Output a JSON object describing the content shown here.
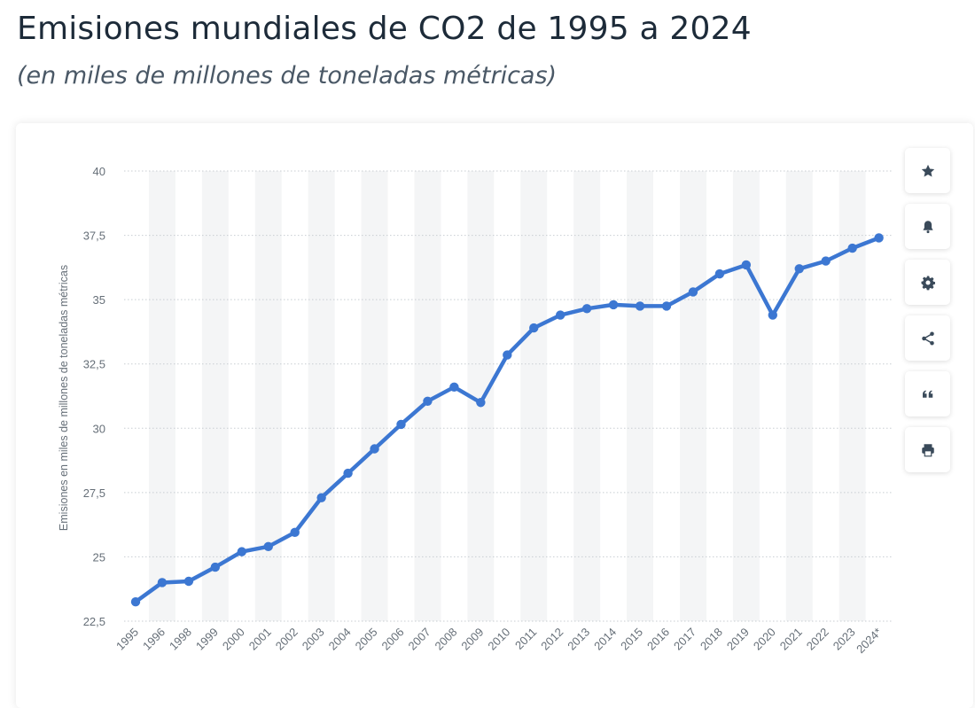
{
  "header": {
    "title": "Emisiones mundiales de CO2 de 1995 a 2024",
    "subtitle": "(en miles de millones de toneladas métricas)"
  },
  "toolbar": {
    "buttons": [
      {
        "name": "favorite-button",
        "icon": "star-icon"
      },
      {
        "name": "notification-button",
        "icon": "bell-icon"
      },
      {
        "name": "settings-button",
        "icon": "gear-icon"
      },
      {
        "name": "share-button",
        "icon": "share-icon"
      },
      {
        "name": "cite-button",
        "icon": "quote-icon"
      },
      {
        "name": "print-button",
        "icon": "printer-icon"
      }
    ]
  },
  "chart_data": {
    "type": "line",
    "title": "Emisiones mundiales de CO2 de 1995 a 2024",
    "subtitle": "(en miles de millones de toneladas métricas)",
    "ylabel": "Emisiones en miles de millones de toneladas métricas",
    "xlabel": "",
    "ylim": [
      22.5,
      40
    ],
    "y_ticks": [
      "22,5",
      "25",
      "27,5",
      "30",
      "32,5",
      "35",
      "37,5",
      "40"
    ],
    "y_tick_values": [
      22.5,
      25,
      27.5,
      30,
      32.5,
      35,
      37.5,
      40
    ],
    "categories": [
      "1995",
      "1996",
      "1998",
      "1999",
      "2000",
      "2001",
      "2002",
      "2003",
      "2004",
      "2005",
      "2006",
      "2007",
      "2008",
      "2009",
      "2010",
      "2011",
      "2012",
      "2013",
      "2014",
      "2015",
      "2016",
      "2017",
      "2018",
      "2019",
      "2020",
      "2021",
      "2022",
      "2023",
      "2024*"
    ],
    "values": [
      23.25,
      24.0,
      24.05,
      24.6,
      25.2,
      25.4,
      25.95,
      27.3,
      28.25,
      29.2,
      30.15,
      31.05,
      31.6,
      31.0,
      32.85,
      33.9,
      34.4,
      34.65,
      34.8,
      34.75,
      34.75,
      35.3,
      36.0,
      36.35,
      34.4,
      36.2,
      36.5,
      37.0,
      37.4
    ],
    "colors": {
      "line": "#3c77d2",
      "grid": "#c8cdd2",
      "band": "#f4f5f6"
    },
    "grid": true,
    "legend": "none"
  }
}
